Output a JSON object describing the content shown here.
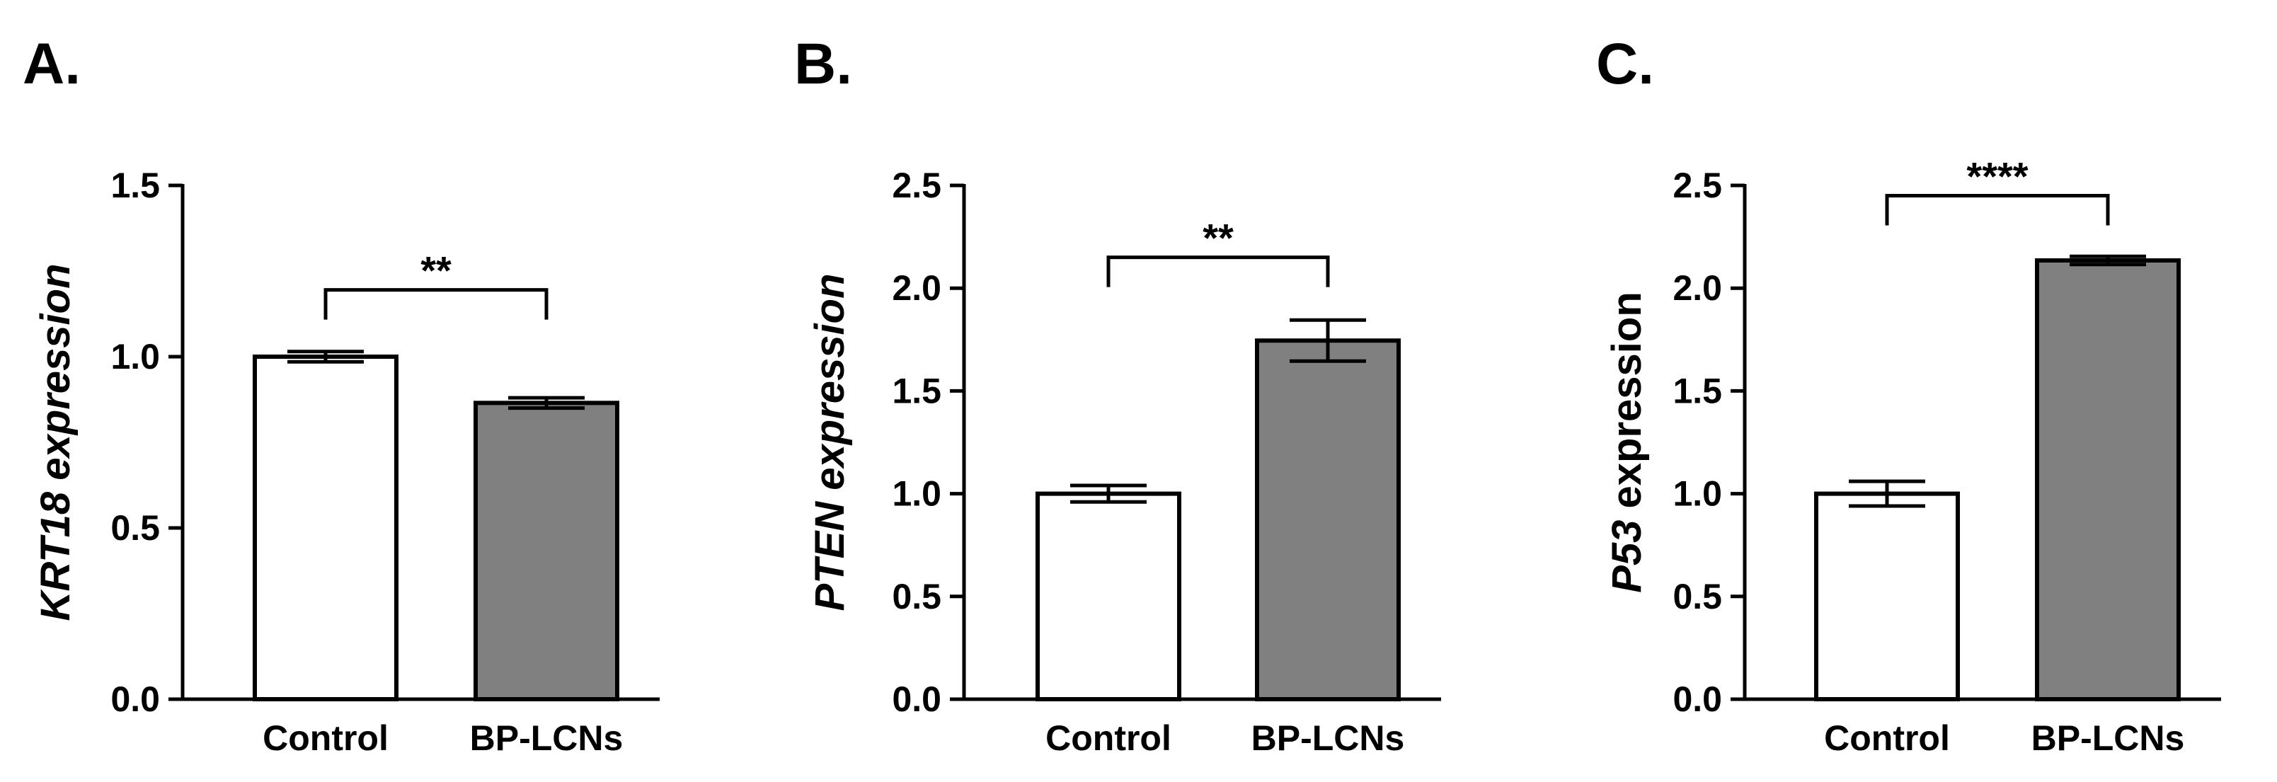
{
  "colors": {
    "control": "#ffffff",
    "treated": "#808080",
    "axis": "#000000"
  },
  "chart_data": [
    {
      "type": "bar",
      "panel": "A.",
      "ylabel": {
        "gene": "KRT18",
        "rest": " expression",
        "rest_italic": true
      },
      "categories": [
        "Control",
        "BP-LCNs"
      ],
      "values": [
        1.0,
        0.865
      ],
      "errors": [
        0.015,
        0.015
      ],
      "ylim": [
        0,
        1.5
      ],
      "yticks": [
        0,
        0.5,
        1.0,
        1.5
      ],
      "ytick_labels": [
        "0.0",
        "0.5",
        "1.0",
        "1.5"
      ],
      "significance": {
        "label": "**",
        "bracket_y": 1.195
      }
    },
    {
      "type": "bar",
      "panel": "B.",
      "ylabel": {
        "gene": "PTEN",
        "rest": " expression",
        "rest_italic": true
      },
      "categories": [
        "Control",
        "BP-LCNs"
      ],
      "values": [
        1.0,
        1.745
      ],
      "errors": [
        0.04,
        0.1
      ],
      "ylim": [
        0,
        2.5
      ],
      "yticks": [
        0,
        0.5,
        1.0,
        1.5,
        2.0,
        2.5
      ],
      "ytick_labels": [
        "0.0",
        "0.5",
        "1.0",
        "1.5",
        "2.0",
        "2.5"
      ],
      "significance": {
        "label": "**",
        "bracket_y": 2.15
      }
    },
    {
      "type": "bar",
      "panel": "C.",
      "ylabel": {
        "gene": "P53",
        "rest": " expression",
        "rest_italic": false
      },
      "categories": [
        "Control",
        "BP-LCNs"
      ],
      "values": [
        1.0,
        2.135
      ],
      "errors": [
        0.06,
        0.02
      ],
      "ylim": [
        0,
        2.5
      ],
      "yticks": [
        0,
        0.5,
        1.0,
        1.5,
        2.0,
        2.5
      ],
      "ytick_labels": [
        "0.0",
        "0.5",
        "1.0",
        "1.5",
        "2.0",
        "2.5"
      ],
      "significance": {
        "label": "****",
        "bracket_y": 2.45
      }
    }
  ]
}
